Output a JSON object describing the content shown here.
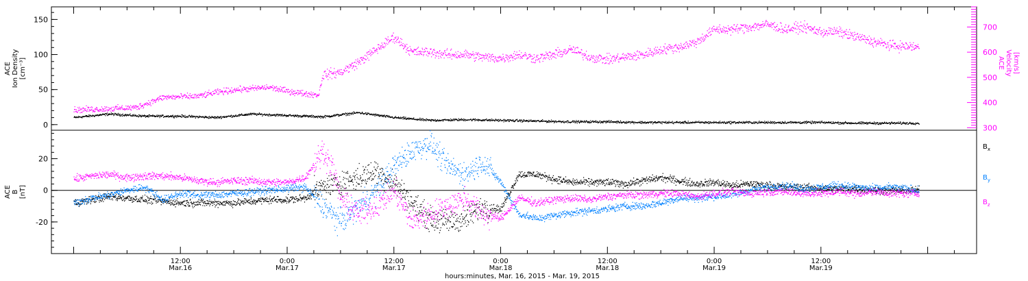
{
  "chart_data": [
    {
      "type": "scatter",
      "panel": "top",
      "ylabel_lines": [
        "ACE",
        "Ion Density",
        "[cm⁻³]"
      ],
      "y2label_lines": [
        "ACE",
        "Velocity",
        "[km/s]"
      ],
      "ylim": [
        -8,
        168
      ],
      "y2lim": [
        290,
        780
      ],
      "yticks": [
        0,
        50,
        100,
        150
      ],
      "y2ticks": [
        300,
        400,
        500,
        600,
        700
      ],
      "y2_color": "#ff00ff",
      "zero_line": false,
      "series": [
        {
          "name": "Ion Density",
          "axis": "left",
          "color": "#000000",
          "x_hours": [
            0,
            4,
            8,
            12,
            16,
            20,
            24,
            28,
            32,
            36,
            40,
            44,
            48,
            52,
            56,
            60,
            64,
            68,
            72,
            76,
            80,
            84,
            88,
            92,
            95
          ],
          "y": [
            10,
            15,
            12,
            12,
            10,
            15,
            13,
            11,
            17,
            10,
            6,
            7,
            6,
            5,
            4,
            4,
            3,
            3,
            3,
            3,
            3,
            3,
            2,
            2,
            2
          ]
        },
        {
          "name": "Velocity",
          "axis": "right",
          "color": "#ff00ff",
          "x_hours": [
            0,
            4,
            7,
            10,
            14,
            16,
            18,
            20,
            22,
            24,
            26,
            27.5,
            28,
            30,
            32,
            34,
            36,
            38,
            40,
            42,
            44,
            46,
            48,
            50,
            52,
            54,
            56,
            58,
            60,
            62,
            64,
            66,
            68,
            70,
            72,
            74,
            76,
            78,
            80,
            82,
            84,
            86,
            88,
            90,
            92,
            95
          ],
          "y": [
            370,
            375,
            380,
            420,
            425,
            440,
            450,
            455,
            460,
            445,
            435,
            430,
            510,
            520,
            560,
            610,
            660,
            600,
            600,
            590,
            590,
            580,
            575,
            590,
            575,
            590,
            610,
            580,
            570,
            580,
            590,
            610,
            620,
            640,
            690,
            690,
            700,
            710,
            690,
            700,
            680,
            680,
            660,
            640,
            625,
            620
          ]
        }
      ]
    },
    {
      "type": "scatter",
      "panel": "bottom",
      "ylabel_lines": [
        "ACE",
        "B",
        "[nT]"
      ],
      "ylim": [
        -40,
        38
      ],
      "yticks": [
        -20,
        0,
        20
      ],
      "zero_line": true,
      "series": [
        {
          "name": "Bx",
          "label_main": "B",
          "label_sub": "x",
          "color": "#000000",
          "x_hours": [
            0,
            2,
            4,
            6,
            8,
            10,
            12,
            14,
            16,
            18,
            20,
            22,
            24,
            26,
            28,
            30,
            32,
            34,
            36,
            38,
            40,
            42,
            44,
            46,
            48,
            50,
            52,
            54,
            56,
            58,
            60,
            62,
            64,
            66,
            68,
            70,
            72,
            74,
            76,
            78,
            80,
            82,
            84,
            86,
            88,
            90,
            92,
            95
          ],
          "y": [
            -8,
            -6,
            -4,
            -5,
            -6,
            -7,
            -8,
            -8,
            -8,
            -8,
            -7,
            -6,
            -6,
            -5,
            2,
            5,
            8,
            12,
            5,
            -8,
            -18,
            -20,
            -18,
            -10,
            -12,
            10,
            10,
            7,
            5,
            5,
            5,
            4,
            6,
            8,
            6,
            4,
            5,
            3,
            4,
            3,
            2,
            2,
            1,
            1,
            1,
            0,
            0,
            0
          ]
        },
        {
          "name": "By",
          "label_main": "B",
          "label_sub": "y",
          "color": "#0080ff",
          "x_hours": [
            0,
            2,
            4,
            6,
            8,
            10,
            12,
            14,
            16,
            18,
            20,
            22,
            24,
            26,
            28,
            30,
            32,
            34,
            36,
            38,
            40,
            42,
            44,
            46,
            48,
            50,
            52,
            54,
            56,
            58,
            60,
            62,
            64,
            66,
            68,
            70,
            72,
            74,
            76,
            78,
            80,
            82,
            84,
            86,
            88,
            90,
            92,
            95
          ],
          "y": [
            -8,
            -5,
            -3,
            0,
            2,
            -6,
            -2,
            -3,
            -3,
            -2,
            -1,
            0,
            1,
            2,
            -10,
            -20,
            -10,
            0,
            15,
            25,
            30,
            15,
            10,
            18,
            5,
            -15,
            -18,
            -16,
            -14,
            -13,
            -12,
            -10,
            -10,
            -8,
            -5,
            -5,
            -4,
            -3,
            0,
            2,
            3,
            1,
            2,
            3,
            2,
            1,
            2,
            0
          ]
        },
        {
          "name": "Bz",
          "label_main": "B",
          "label_sub": "z",
          "color": "#ff00ff",
          "x_hours": [
            0,
            2,
            4,
            6,
            8,
            10,
            12,
            14,
            16,
            18,
            20,
            22,
            24,
            26,
            28,
            29,
            30,
            32,
            34,
            36,
            38,
            40,
            42,
            44,
            46,
            48,
            50,
            52,
            54,
            56,
            58,
            60,
            62,
            64,
            66,
            68,
            70,
            72,
            74,
            76,
            78,
            80,
            82,
            84,
            86,
            88,
            90,
            92,
            95
          ],
          "y": [
            7,
            9,
            10,
            8,
            9,
            9,
            8,
            6,
            5,
            6,
            6,
            5,
            5,
            8,
            25,
            15,
            -5,
            -15,
            -10,
            0,
            -20,
            -15,
            -10,
            -5,
            -15,
            -18,
            -5,
            -8,
            -6,
            -5,
            -6,
            -4,
            -3,
            -3,
            -2,
            -2,
            -4,
            -2,
            -1,
            -2,
            -1,
            -1,
            -2,
            -2,
            -1,
            -2,
            -1,
            -2,
            -2
          ]
        }
      ]
    }
  ],
  "x_axis": {
    "xlim_hours": [
      -2.5,
      101.5
    ],
    "ticks_hours": [
      12,
      24,
      36,
      48,
      60,
      72,
      84,
      96
    ],
    "tick_labels_time": [
      "12:00",
      "0:00",
      "12:00",
      "0:00",
      "12:00",
      "0:00",
      "12:00"
    ],
    "tick_labels_date": [
      "Mar.16",
      "Mar.17",
      "Mar.17",
      "Mar.18",
      "Mar.18",
      "Mar.19",
      "Mar.19"
    ],
    "xlabel": "hours:minutes, Mar. 16, 2015 - Mar. 19, 2015"
  }
}
